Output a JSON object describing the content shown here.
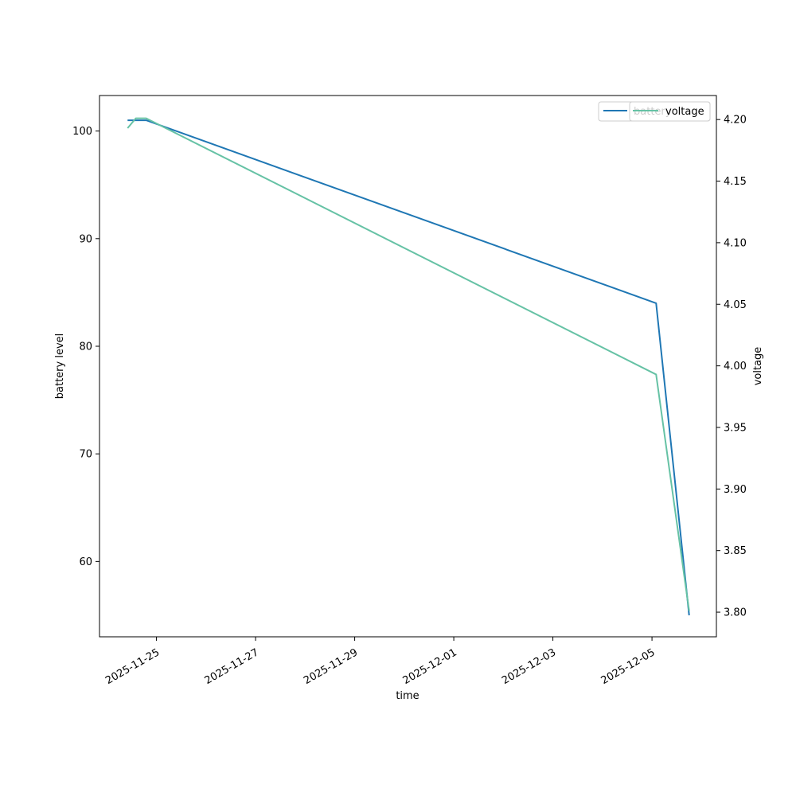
{
  "chart_data": {
    "type": "line",
    "xlabel": "time",
    "ylabel_left": "battery level",
    "ylabel_right": "voltage",
    "x_range": [
      "2025-11-23T20:24",
      "2025-12-06T07:12"
    ],
    "ylim_left": [
      53,
      103.3
    ],
    "ylim_right": [
      3.78,
      4.2195
    ],
    "x_ticks": [
      "2025-11-25",
      "2025-11-27",
      "2025-11-29",
      "2025-12-01",
      "2025-12-03",
      "2025-12-05"
    ],
    "y_ticks_left": [
      60,
      70,
      80,
      90,
      100
    ],
    "y_ticks_right": [
      "3.80",
      "3.85",
      "3.90",
      "3.95",
      "4.00",
      "4.05",
      "4.10",
      "4.15",
      "4.20"
    ],
    "legend_placement": "top-right",
    "grid": false,
    "series": [
      {
        "name": "battery",
        "axis": "left",
        "color": "#1f77b4",
        "points": [
          {
            "x": "2025-11-24T10:00",
            "y": 101
          },
          {
            "x": "2025-11-24T19:00",
            "y": 101
          },
          {
            "x": "2025-12-05T02:00",
            "y": 84
          },
          {
            "x": "2025-12-05T18:00",
            "y": 55
          }
        ]
      },
      {
        "name": "voltage",
        "axis": "right",
        "color": "#66c2a5",
        "points": [
          {
            "x": "2025-11-24T10:00",
            "y": 4.193
          },
          {
            "x": "2025-11-24T14:00",
            "y": 4.201
          },
          {
            "x": "2025-11-24T19:00",
            "y": 4.201
          },
          {
            "x": "2025-12-05T02:00",
            "y": 3.993
          },
          {
            "x": "2025-12-05T18:00",
            "y": 3.801
          }
        ]
      }
    ]
  }
}
